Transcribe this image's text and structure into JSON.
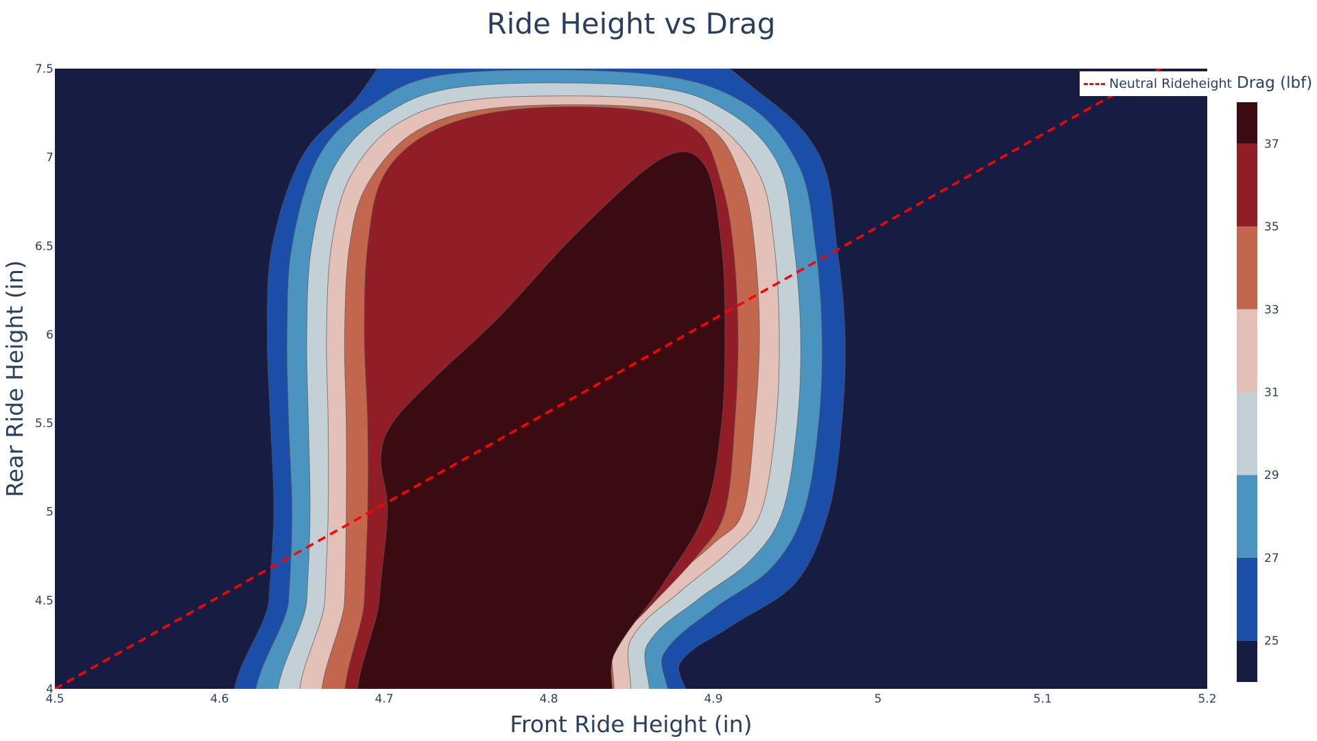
{
  "chart_data": {
    "type": "contour",
    "title": "Ride Height vs Drag",
    "xlabel": "Front Ride Height (in)",
    "ylabel": "Rear Ride Height (in)",
    "xlim": [
      4.5,
      5.2
    ],
    "ylim": [
      4,
      7.5
    ],
    "x_ticks": [
      "4.5",
      "4.6",
      "4.7",
      "4.8",
      "4.9",
      "5",
      "5.1",
      "5.2"
    ],
    "y_ticks": [
      "4",
      "4.5",
      "5",
      "5.5",
      "6",
      "6.5",
      "7",
      "7.5"
    ],
    "colorbar": {
      "title": "Drag (lbf)",
      "ticks": [
        "25",
        "27",
        "29",
        "31",
        "33",
        "35",
        "37"
      ],
      "range": [
        24,
        38
      ],
      "levels": [
        {
          "from": 24,
          "to": 25,
          "color": "#171c42"
        },
        {
          "from": 25,
          "to": 27,
          "color": "#1b4ea8"
        },
        {
          "from": 27,
          "to": 29,
          "color": "#4a94bf"
        },
        {
          "from": 29,
          "to": 31,
          "color": "#c3d0d6"
        },
        {
          "from": 31,
          "to": 33,
          "color": "#e3c1b8"
        },
        {
          "from": 33,
          "to": 35,
          "color": "#c2674d"
        },
        {
          "from": 35,
          "to": 37,
          "color": "#911e26"
        },
        {
          "from": 37,
          "to": 38,
          "color": "#3b0b12"
        }
      ]
    },
    "contours": [
      {
        "level": 25,
        "color": "#1b4ea8",
        "points": [
          [
            4.625,
            4
          ],
          [
            4.63,
            4.5
          ],
          [
            4.633,
            5
          ],
          [
            4.631,
            5.5
          ],
          [
            4.629,
            6
          ],
          [
            4.632,
            6.5
          ],
          [
            4.65,
            7
          ],
          [
            4.68,
            7.3
          ],
          [
            4.73,
            7.5
          ],
          [
            4.86,
            7.5
          ],
          [
            4.93,
            7.35
          ],
          [
            4.965,
            7.0
          ],
          [
            4.975,
            6.5
          ],
          [
            4.98,
            6.0
          ],
          [
            4.978,
            5.5
          ],
          [
            4.97,
            5.0
          ],
          [
            4.95,
            4.6
          ],
          [
            4.91,
            4.35
          ],
          [
            4.88,
            4.15
          ],
          [
            4.865,
            4
          ]
        ]
      },
      {
        "level": 27,
        "color": "#4a94bf",
        "points": [
          [
            4.636,
            4
          ],
          [
            4.642,
            4.5
          ],
          [
            4.644,
            5
          ],
          [
            4.642,
            5.5
          ],
          [
            4.641,
            6
          ],
          [
            4.644,
            6.5
          ],
          [
            4.66,
            7.0
          ],
          [
            4.69,
            7.28
          ],
          [
            4.74,
            7.47
          ],
          [
            4.86,
            7.47
          ],
          [
            4.92,
            7.3
          ],
          [
            4.952,
            6.95
          ],
          [
            4.962,
            6.5
          ],
          [
            4.966,
            6.0
          ],
          [
            4.964,
            5.5
          ],
          [
            4.955,
            5.0
          ],
          [
            4.935,
            4.68
          ],
          [
            4.9,
            4.45
          ],
          [
            4.87,
            4.2
          ],
          [
            4.853,
            4
          ]
        ]
      },
      {
        "level": 29,
        "color": "#c3d0d6",
        "points": [
          [
            4.648,
            4
          ],
          [
            4.653,
            4.5
          ],
          [
            4.655,
            5
          ],
          [
            4.654,
            5.5
          ],
          [
            4.653,
            6
          ],
          [
            4.656,
            6.5
          ],
          [
            4.67,
            6.95
          ],
          [
            4.7,
            7.24
          ],
          [
            4.75,
            7.4
          ],
          [
            4.86,
            7.4
          ],
          [
            4.91,
            7.25
          ],
          [
            4.94,
            6.95
          ],
          [
            4.949,
            6.5
          ],
          [
            4.953,
            6.0
          ],
          [
            4.951,
            5.5
          ],
          [
            4.942,
            5.0
          ],
          [
            4.922,
            4.72
          ],
          [
            4.89,
            4.5
          ],
          [
            4.86,
            4.25
          ],
          [
            4.842,
            4
          ]
        ]
      },
      {
        "level": 31,
        "color": "#e3c1b8",
        "points": [
          [
            4.66,
            4
          ],
          [
            4.664,
            4.5
          ],
          [
            4.666,
            5
          ],
          [
            4.666,
            5.5
          ],
          [
            4.665,
            6
          ],
          [
            4.668,
            6.5
          ],
          [
            4.68,
            6.9
          ],
          [
            4.71,
            7.2
          ],
          [
            4.76,
            7.33
          ],
          [
            4.86,
            7.33
          ],
          [
            4.9,
            7.2
          ],
          [
            4.928,
            6.9
          ],
          [
            4.937,
            6.5
          ],
          [
            4.94,
            6.0
          ],
          [
            4.938,
            5.5
          ],
          [
            4.929,
            5.0
          ],
          [
            4.91,
            4.78
          ],
          [
            4.88,
            4.55
          ],
          [
            4.85,
            4.28
          ],
          [
            4.832,
            4
          ]
        ]
      },
      {
        "level": 33,
        "color": "#c2674d",
        "points": [
          [
            4.672,
            4
          ],
          [
            4.676,
            4.5
          ],
          [
            4.677,
            5
          ],
          [
            4.677,
            5.5
          ],
          [
            4.676,
            6
          ],
          [
            4.679,
            6.5
          ],
          [
            4.69,
            6.85
          ],
          [
            4.72,
            7.15
          ],
          [
            4.77,
            7.28
          ],
          [
            4.86,
            7.28
          ],
          [
            4.9,
            7.15
          ],
          [
            4.918,
            6.85
          ],
          [
            4.925,
            6.5
          ],
          [
            4.928,
            6.0
          ],
          [
            4.925,
            5.5
          ],
          [
            4.918,
            5.0
          ],
          [
            4.9,
            4.82
          ],
          [
            4.87,
            4.58
          ],
          [
            4.84,
            4.3
          ],
          [
            4.824,
            4
          ]
        ]
      },
      {
        "level": 35,
        "color": "#911e26",
        "points": [
          [
            4.685,
            4
          ],
          [
            4.688,
            4.5
          ],
          [
            4.69,
            5
          ],
          [
            4.69,
            5.5
          ],
          [
            4.688,
            6
          ],
          [
            4.69,
            6.5
          ],
          [
            4.7,
            6.9
          ],
          [
            4.73,
            7.15
          ],
          [
            4.78,
            7.27
          ],
          [
            4.85,
            7.27
          ],
          [
            4.89,
            7.15
          ],
          [
            4.905,
            6.85
          ],
          [
            4.912,
            6.5
          ],
          [
            4.915,
            6.0
          ],
          [
            4.913,
            5.5
          ],
          [
            4.907,
            5.0
          ],
          [
            4.89,
            4.75
          ],
          [
            4.86,
            4.45
          ],
          [
            4.83,
            4.15
          ],
          [
            4.818,
            4
          ]
        ]
      },
      {
        "level": 37,
        "color": "#3b0b12",
        "points": [
          [
            4.692,
            4
          ],
          [
            4.697,
            4.5
          ],
          [
            4.702,
            5
          ],
          [
            4.698,
            5.3
          ],
          [
            4.705,
            5.5
          ],
          [
            4.73,
            5.75
          ],
          [
            4.77,
            6.1
          ],
          [
            4.82,
            6.6
          ],
          [
            4.87,
            7.0
          ],
          [
            4.895,
            6.95
          ],
          [
            4.905,
            6.5
          ],
          [
            4.907,
            6.0
          ],
          [
            4.905,
            5.5
          ],
          [
            4.895,
            5.0
          ],
          [
            4.87,
            4.6
          ],
          [
            4.84,
            4.2
          ],
          [
            4.825,
            4
          ]
        ]
      }
    ],
    "series": [
      {
        "name": "Neutral Rideheight",
        "type": "line",
        "style": "dashed",
        "color": "#ff0000",
        "x": [
          4.5,
          5.2
        ],
        "y": [
          4,
          7.65
        ]
      }
    ],
    "legend": {
      "position": "top-right"
    },
    "grid": false
  }
}
